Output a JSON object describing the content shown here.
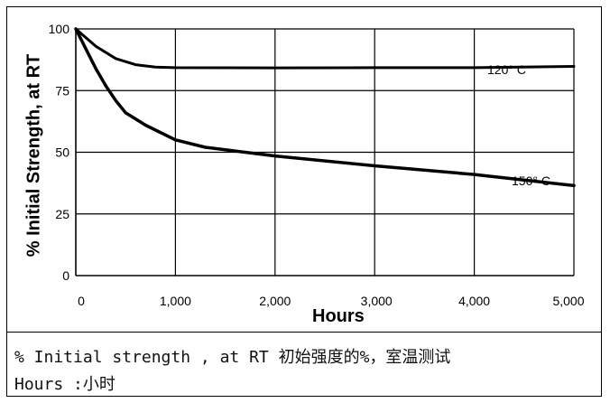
{
  "chart_data": {
    "type": "line",
    "xlabel": "Hours",
    "ylabel": "% Initial Strength, at RT",
    "xlim": [
      0,
      5000
    ],
    "ylim": [
      0,
      100
    ],
    "x_ticks": [
      0,
      1000,
      2000,
      3000,
      4000,
      5000
    ],
    "x_tick_labels": [
      "0",
      "1,000",
      "2,000",
      "3,000",
      "4,000",
      "5,000"
    ],
    "y_ticks": [
      0,
      25,
      50,
      75,
      100
    ],
    "y_tick_labels": [
      "0",
      "25",
      "50",
      "75",
      "100"
    ],
    "grid": true,
    "series": [
      {
        "name": "120° C",
        "x": [
          0,
          200,
          400,
          600,
          800,
          1000,
          2000,
          3000,
          4000,
          5000
        ],
        "y": [
          100,
          93,
          88,
          85.5,
          84.5,
          84.3,
          84.2,
          84.3,
          84.3,
          84.8
        ]
      },
      {
        "name": "150° C",
        "x": [
          0,
          100,
          200,
          300,
          400,
          500,
          700,
          1000,
          1300,
          1600,
          2000,
          3000,
          4000,
          5000
        ],
        "y": [
          100,
          92,
          84,
          77,
          71,
          66,
          61,
          55,
          52,
          50.5,
          48.5,
          44.5,
          41,
          36.5
        ]
      }
    ]
  },
  "caption": {
    "line1": "% Initial strength , at RT 初始强度的%，室温测试",
    "line2": "Hours :小时"
  }
}
